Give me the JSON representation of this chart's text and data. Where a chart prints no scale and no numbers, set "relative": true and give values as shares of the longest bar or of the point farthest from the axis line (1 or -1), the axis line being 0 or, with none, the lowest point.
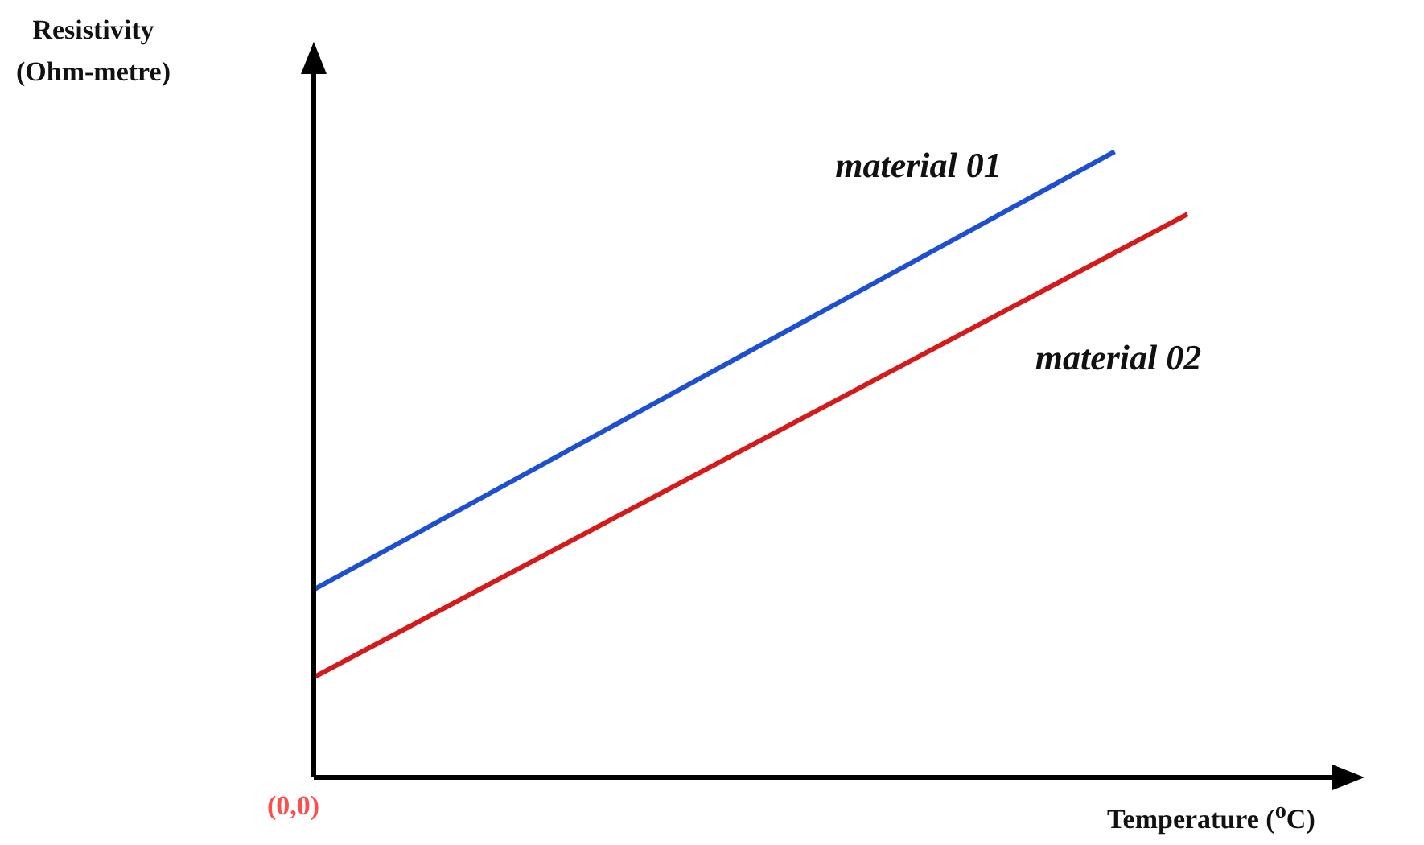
{
  "chart_data": {
    "type": "line",
    "relative": true,
    "xlabel": "Temperature ($^{o}$C)",
    "legend": false,
    "categories": [
      null,
      null,
      null,
      null,
      null,
      null,
      null,
      null,
      null,
      null,
      null,
      null,
      null
    ],
    "series": [
      {
        "name": "material 01",
        "color": "#1f4fd1",
        "values": [
          0.3,
          null,
          null,
          null,
          null,
          null,
          null,
          null,
          null,
          null,
          null,
          1,
          null
        ]
      },
      {
        "name": "material 02",
        "color": "#d41a1a",
        "values": [
          0.16,
          null,
          null,
          null,
          null,
          null,
          null,
          null,
          null,
          null,
          null,
          null,
          0.9
        ]
      }
    ],
    "annotations": [
      "Resistivity\n(Ohm-metre)",
      "(0,0)"
    ]
  }
}
